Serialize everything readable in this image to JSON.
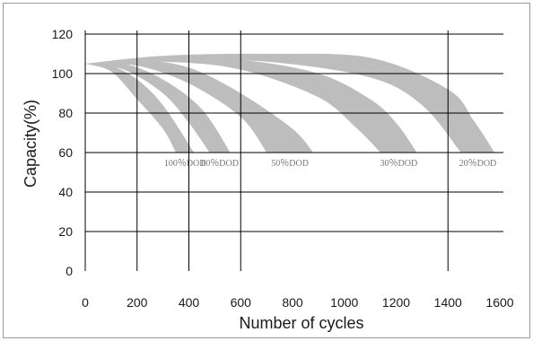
{
  "chart_data": {
    "type": "area",
    "xlabel": "Number of cycles",
    "ylabel": "Capacity(%)",
    "xlim": [
      0,
      1600
    ],
    "ylim": [
      0,
      120
    ],
    "x_ticks": [
      "0",
      "200",
      "400",
      "600",
      "800",
      "1000",
      "1200",
      "1400",
      "1600"
    ],
    "y_ticks": [
      "0",
      "20",
      "40",
      "60",
      "80",
      "100",
      "120"
    ],
    "vertical_gridlines_at": [
      200,
      400,
      600,
      1400
    ],
    "horizontal_gridlines_at": [
      20,
      40,
      60,
      80,
      100,
      120
    ],
    "band_color": "#bdbdbd",
    "grid_color": "#000000",
    "series": [
      {
        "name": "100%DOD",
        "label": "100％DOD",
        "upper": [
          [
            0,
            105
          ],
          [
            100,
            104
          ],
          [
            200,
            97
          ],
          [
            300,
            84
          ],
          [
            420,
            60
          ]
        ],
        "lower": [
          [
            0,
            105
          ],
          [
            100,
            101
          ],
          [
            200,
            87
          ],
          [
            300,
            72
          ],
          [
            350,
            60
          ]
        ]
      },
      {
        "name": "80%DOD",
        "label": "80％DOD",
        "upper": [
          [
            0,
            105
          ],
          [
            150,
            105
          ],
          [
            300,
            97
          ],
          [
            450,
            82
          ],
          [
            560,
            60
          ]
        ],
        "lower": [
          [
            0,
            105
          ],
          [
            150,
            102
          ],
          [
            300,
            90
          ],
          [
            400,
            75
          ],
          [
            480,
            60
          ]
        ]
      },
      {
        "name": "50%DOD",
        "label": "50％DOD",
        "upper": [
          [
            0,
            105
          ],
          [
            200,
            107
          ],
          [
            400,
            103
          ],
          [
            600,
            90
          ],
          [
            800,
            72
          ],
          [
            880,
            60
          ]
        ],
        "lower": [
          [
            0,
            105
          ],
          [
            200,
            104
          ],
          [
            400,
            95
          ],
          [
            600,
            78
          ],
          [
            700,
            60
          ]
        ]
      },
      {
        "name": "30%DOD",
        "label": "30％DOD",
        "upper": [
          [
            0,
            105
          ],
          [
            300,
            108
          ],
          [
            600,
            107
          ],
          [
            900,
            100
          ],
          [
            1100,
            87
          ],
          [
            1200,
            75
          ],
          [
            1280,
            60
          ]
        ],
        "lower": [
          [
            0,
            105
          ],
          [
            300,
            106
          ],
          [
            600,
            102
          ],
          [
            900,
            88
          ],
          [
            1050,
            72
          ],
          [
            1140,
            60
          ]
        ]
      },
      {
        "name": "20%DOD",
        "label": "20％DOD",
        "upper": [
          [
            0,
            105
          ],
          [
            300,
            109
          ],
          [
            700,
            110
          ],
          [
            1100,
            108
          ],
          [
            1400,
            92
          ],
          [
            1500,
            76
          ],
          [
            1580,
            60
          ]
        ],
        "lower": [
          [
            0,
            105
          ],
          [
            300,
            107
          ],
          [
            700,
            106
          ],
          [
            1100,
            98
          ],
          [
            1300,
            84
          ],
          [
            1450,
            60
          ]
        ]
      }
    ]
  }
}
